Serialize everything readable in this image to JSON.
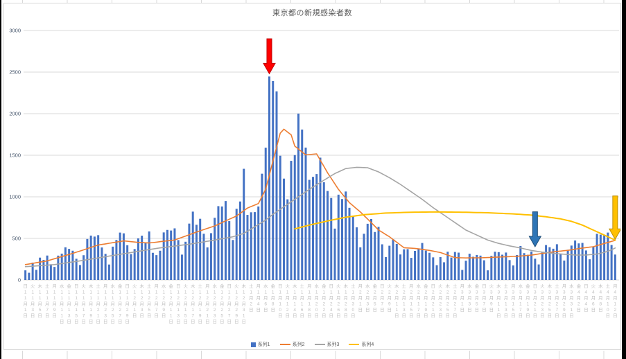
{
  "worksheet": {
    "gridline_color": "#d9d9d9",
    "edge_color": "#000000"
  },
  "chart_data": {
    "type": "bar",
    "title": "東京都の新規感染者数",
    "xlabel": "",
    "ylabel": "",
    "ylim": [
      0,
      3000
    ],
    "yticks": [
      0,
      500,
      1000,
      1500,
      2000,
      2500,
      3000
    ],
    "grid": true,
    "legend_position": "bottom",
    "x_start_date": "2020-11-01",
    "x_end_date": "2021-04-12",
    "x_label_step": 2,
    "dow_chars": [
      "日",
      "月",
      "火",
      "水",
      "木",
      "金",
      "土"
    ],
    "month_char": "月",
    "day_char": "日",
    "series": [
      {
        "name": "系列1",
        "type": "bar",
        "color": "#4472C4",
        "values": [
          116,
          87,
          209,
          122,
          269,
          242,
          294,
          189,
          157,
          293,
          317,
          393,
          374,
          352,
          255,
          180,
          298,
          493,
          534,
          522,
          539,
          391,
          314,
          186,
          401,
          481,
          570,
          561,
          418,
          311,
          372,
          500,
          533,
          449,
          584,
          327,
          299,
          352,
          572,
          602,
          595,
          621,
          480,
          305,
          460,
          678,
          822,
          664,
          736,
          556,
          392,
          563,
          748,
          888,
          884,
          949,
          708,
          481,
          856,
          944,
          1337,
          783,
          814,
          816,
          884,
          1278,
          1591,
          2447,
          2392,
          2268,
          1494,
          1219,
          970,
          1433,
          1502,
          2001,
          1809,
          1592,
          1204,
          1240,
          1274,
          1471,
          1175,
          1070,
          986,
          618,
          1026,
          973,
          1064,
          868,
          769,
          633,
          393,
          556,
          676,
          734,
          577,
          639,
          429,
          276,
          412,
          491,
          434,
          307,
          369,
          371,
          266,
          350,
          378,
          445,
          353,
          327,
          272,
          178,
          275,
          213,
          340,
          270,
          337,
          329,
          121,
          232,
          316,
          279,
          301,
          293,
          237,
          116,
          290,
          340,
          335,
          304,
          330,
          239,
          175,
          300,
          409,
          323,
          303,
          342,
          256,
          187,
          337,
          420,
          394,
          376,
          430,
          313,
          234,
          364,
          414,
          475,
          440,
          446,
          355,
          249,
          399,
          555,
          545,
          537,
          570,
          421,
          306
        ]
      },
      {
        "name": "系列2",
        "type": "line",
        "color": "#ED7D31",
        "points": [
          [
            0,
            185
          ],
          [
            6,
            230
          ],
          [
            13,
            320
          ],
          [
            20,
            420
          ],
          [
            27,
            470
          ],
          [
            31,
            452
          ],
          [
            34,
            445
          ],
          [
            41,
            481
          ],
          [
            48,
            592
          ],
          [
            52,
            650
          ],
          [
            55,
            711
          ],
          [
            58,
            770
          ],
          [
            61,
            865
          ],
          [
            64,
            919
          ],
          [
            66,
            1090
          ],
          [
            68,
            1430
          ],
          [
            70,
            1765
          ],
          [
            71,
            1813
          ],
          [
            73,
            1746
          ],
          [
            74,
            1611
          ],
          [
            77,
            1504
          ],
          [
            80,
            1517
          ],
          [
            83,
            1289
          ],
          [
            86,
            1089
          ],
          [
            89,
            930
          ],
          [
            92,
            818
          ],
          [
            95,
            690
          ],
          [
            97,
            601
          ],
          [
            100,
            520
          ],
          [
            104,
            388
          ],
          [
            107,
            380
          ],
          [
            111,
            356
          ],
          [
            114,
            330
          ],
          [
            118,
            269
          ],
          [
            121,
            265
          ],
          [
            125,
            267
          ],
          [
            128,
            272
          ],
          [
            132,
            279
          ],
          [
            135,
            285
          ],
          [
            139,
            299
          ],
          [
            142,
            320
          ],
          [
            146,
            343
          ],
          [
            149,
            357
          ],
          [
            153,
            384
          ],
          [
            156,
            400
          ],
          [
            158,
            427
          ],
          [
            160,
            452
          ],
          [
            162,
            476
          ]
        ]
      },
      {
        "name": "系列3",
        "type": "line",
        "color": "#A5A5A5",
        "points": [
          [
            0,
            160
          ],
          [
            8,
            185
          ],
          [
            15,
            230
          ],
          [
            22,
            280
          ],
          [
            29,
            330
          ],
          [
            36,
            380
          ],
          [
            45,
            430
          ],
          [
            52,
            480
          ],
          [
            57,
            520
          ],
          [
            60,
            560
          ],
          [
            63,
            640
          ],
          [
            66,
            720
          ],
          [
            68,
            790
          ],
          [
            71,
            880
          ],
          [
            75,
            1000
          ],
          [
            78,
            1090
          ],
          [
            82,
            1200
          ],
          [
            85,
            1280
          ],
          [
            88,
            1340
          ],
          [
            91,
            1355
          ],
          [
            94,
            1350
          ],
          [
            97,
            1300
          ],
          [
            100,
            1230
          ],
          [
            103,
            1150
          ],
          [
            106,
            1060
          ],
          [
            109,
            970
          ],
          [
            112,
            870
          ],
          [
            115,
            780
          ],
          [
            118,
            690
          ],
          [
            121,
            600
          ],
          [
            124,
            540
          ],
          [
            127,
            480
          ],
          [
            130,
            440
          ],
          [
            133,
            410
          ],
          [
            136,
            385
          ],
          [
            139,
            355
          ],
          [
            142,
            335
          ],
          [
            145,
            320
          ],
          [
            148,
            310
          ],
          [
            151,
            300
          ],
          [
            154,
            300
          ],
          [
            157,
            312
          ],
          [
            159,
            332
          ],
          [
            161,
            362
          ],
          [
            162,
            385
          ]
        ]
      },
      {
        "name": "系列4",
        "type": "line",
        "color": "#FFC000",
        "points": [
          [
            74,
            615
          ],
          [
            78,
            660
          ],
          [
            83,
            710
          ],
          [
            88,
            755
          ],
          [
            93,
            785
          ],
          [
            99,
            805
          ],
          [
            106,
            815
          ],
          [
            113,
            818
          ],
          [
            120,
            815
          ],
          [
            127,
            808
          ],
          [
            134,
            795
          ],
          [
            139,
            780
          ],
          [
            143,
            760
          ],
          [
            147,
            735
          ],
          [
            150,
            705
          ],
          [
            153,
            660
          ],
          [
            156,
            600
          ],
          [
            159,
            540
          ],
          [
            162,
            480
          ]
        ]
      }
    ],
    "annotations": [
      {
        "name": "red-arrow",
        "fill": "#FF0000",
        "stroke": "#C00000",
        "x_index": 67,
        "y_top": 2900,
        "y_bottom": 2480
      },
      {
        "name": "blue-arrow",
        "fill": "#2E75B6",
        "stroke": "#1F4E79",
        "x_index": 140,
        "y_top": 820,
        "y_bottom": 400
      },
      {
        "name": "yellow-arrow",
        "fill": "#FFC000",
        "stroke": "#BF8F00",
        "x_index": 162,
        "y_top": 1010,
        "y_bottom": 490
      }
    ]
  }
}
